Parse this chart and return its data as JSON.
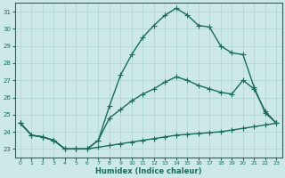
{
  "xlabel": "Humidex (Indice chaleur)",
  "bg_color": "#cce8e8",
  "grid_color": "#b0d4cc",
  "line_color": "#1a6b5a",
  "xlim": [
    -0.5,
    23.5
  ],
  "ylim": [
    22.5,
    31.5
  ],
  "yticks": [
    23,
    24,
    25,
    26,
    27,
    28,
    29,
    30,
    31
  ],
  "xticks": [
    0,
    1,
    2,
    3,
    4,
    5,
    6,
    7,
    8,
    9,
    10,
    11,
    12,
    13,
    14,
    15,
    16,
    17,
    18,
    19,
    20,
    21,
    22,
    23
  ],
  "line1_x": [
    0,
    1,
    2,
    3,
    4,
    5,
    6,
    7,
    8,
    9,
    10,
    11,
    12,
    13,
    14,
    15,
    16,
    17,
    18,
    19,
    20,
    21,
    22,
    23
  ],
  "line1_y": [
    24.5,
    23.8,
    23.7,
    23.5,
    23.0,
    23.0,
    23.0,
    23.1,
    23.2,
    23.3,
    23.4,
    23.5,
    23.6,
    23.7,
    23.8,
    23.85,
    23.9,
    23.95,
    24.0,
    24.1,
    24.2,
    24.3,
    24.4,
    24.5
  ],
  "line2_x": [
    0,
    1,
    2,
    3,
    4,
    5,
    6,
    7,
    8,
    9,
    10,
    11,
    12,
    13,
    14,
    15,
    16,
    17,
    18,
    19,
    20,
    21,
    22,
    23
  ],
  "line2_y": [
    24.5,
    23.8,
    23.7,
    23.5,
    23.0,
    23.0,
    23.0,
    23.5,
    24.8,
    25.3,
    25.8,
    26.2,
    26.5,
    26.9,
    27.2,
    27.0,
    26.7,
    26.5,
    26.3,
    26.2,
    27.0,
    26.5,
    25.2,
    24.5
  ],
  "line3_x": [
    0,
    1,
    2,
    3,
    4,
    5,
    6,
    7,
    8,
    9,
    10,
    11,
    12,
    13,
    14,
    15,
    16,
    17,
    18,
    19,
    20,
    21,
    22,
    23
  ],
  "line3_y": [
    24.5,
    23.8,
    23.7,
    23.5,
    23.0,
    23.0,
    23.0,
    23.5,
    25.5,
    27.3,
    28.5,
    29.5,
    30.2,
    30.8,
    31.2,
    30.8,
    30.2,
    30.1,
    29.0,
    28.6,
    28.5,
    26.6,
    25.1,
    24.5
  ],
  "marker": "+",
  "markersize": 4,
  "linewidth": 1.0
}
